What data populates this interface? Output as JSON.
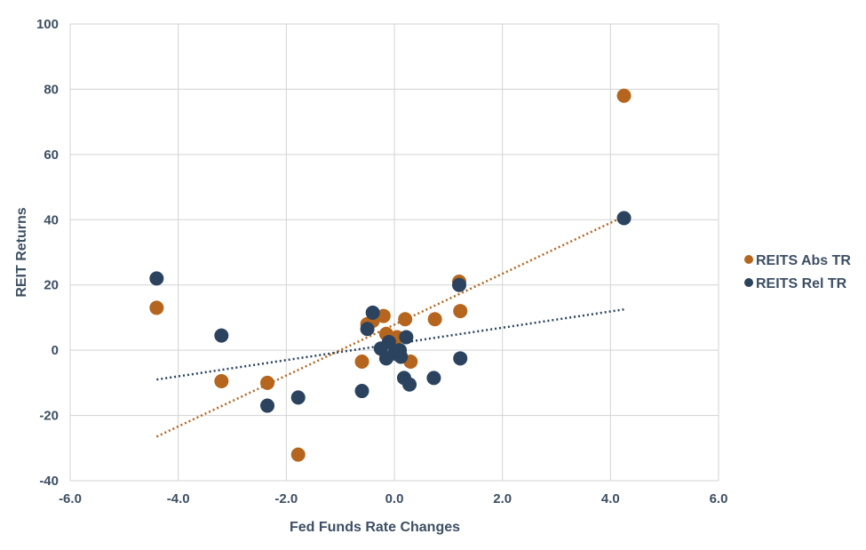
{
  "chart_data": {
    "type": "scatter",
    "xlabel": "Fed Funds Rate Changes",
    "ylabel": "REIT Returns",
    "xlim": [
      -6,
      6
    ],
    "ylim": [
      -40,
      100
    ],
    "xticks": [
      -6,
      -4,
      -2,
      0,
      2,
      4,
      6
    ],
    "xtick_labels": [
      "-6.0",
      "-4.0",
      "-2.0",
      "0.0",
      "2.0",
      "4.0",
      "6.0"
    ],
    "yticks": [
      -40,
      -20,
      0,
      20,
      40,
      60,
      80,
      100
    ],
    "ytick_labels": [
      "-40",
      "-20",
      "0",
      "20",
      "40",
      "60",
      "80",
      "100"
    ],
    "grid": true,
    "legend_position": "right",
    "series": [
      {
        "name": "REITS Abs TR",
        "color": "#b5651d",
        "points": [
          [
            -4.4,
            13
          ],
          [
            -3.2,
            -9.5
          ],
          [
            -2.35,
            -10
          ],
          [
            -1.78,
            -32
          ],
          [
            -0.6,
            -3.5
          ],
          [
            -0.5,
            8
          ],
          [
            -0.4,
            9
          ],
          [
            -0.2,
            10.5
          ],
          [
            -0.15,
            5
          ],
          [
            0.05,
            4
          ],
          [
            0.1,
            -1
          ],
          [
            0.2,
            9.5
          ],
          [
            0.3,
            -3.5
          ],
          [
            0.75,
            9.5
          ],
          [
            1.2,
            21
          ],
          [
            1.22,
            12
          ],
          [
            4.25,
            78
          ]
        ],
        "trendline": {
          "x": [
            -4.4,
            4.25
          ],
          "y": [
            -26.5,
            41
          ]
        }
      },
      {
        "name": "REITS Rel TR",
        "color": "#2b435e",
        "points": [
          [
            -4.4,
            22
          ],
          [
            -3.2,
            4.5
          ],
          [
            -2.35,
            -17
          ],
          [
            -1.78,
            -14.5
          ],
          [
            -0.6,
            -12.5
          ],
          [
            -0.5,
            6.5
          ],
          [
            -0.4,
            11.5
          ],
          [
            -0.25,
            0.5
          ],
          [
            -0.15,
            -2.5
          ],
          [
            -0.1,
            2.5
          ],
          [
            0.0,
            -1.0
          ],
          [
            0.1,
            0.0
          ],
          [
            0.12,
            -2.0
          ],
          [
            0.18,
            -8.5
          ],
          [
            0.22,
            4.0
          ],
          [
            0.28,
            -10.5
          ],
          [
            0.73,
            -8.5
          ],
          [
            1.2,
            20
          ],
          [
            1.22,
            -2.5
          ],
          [
            4.25,
            40.5
          ]
        ],
        "trendline": {
          "x": [
            -4.4,
            4.25
          ],
          "y": [
            -9,
            12.5
          ]
        }
      }
    ]
  }
}
